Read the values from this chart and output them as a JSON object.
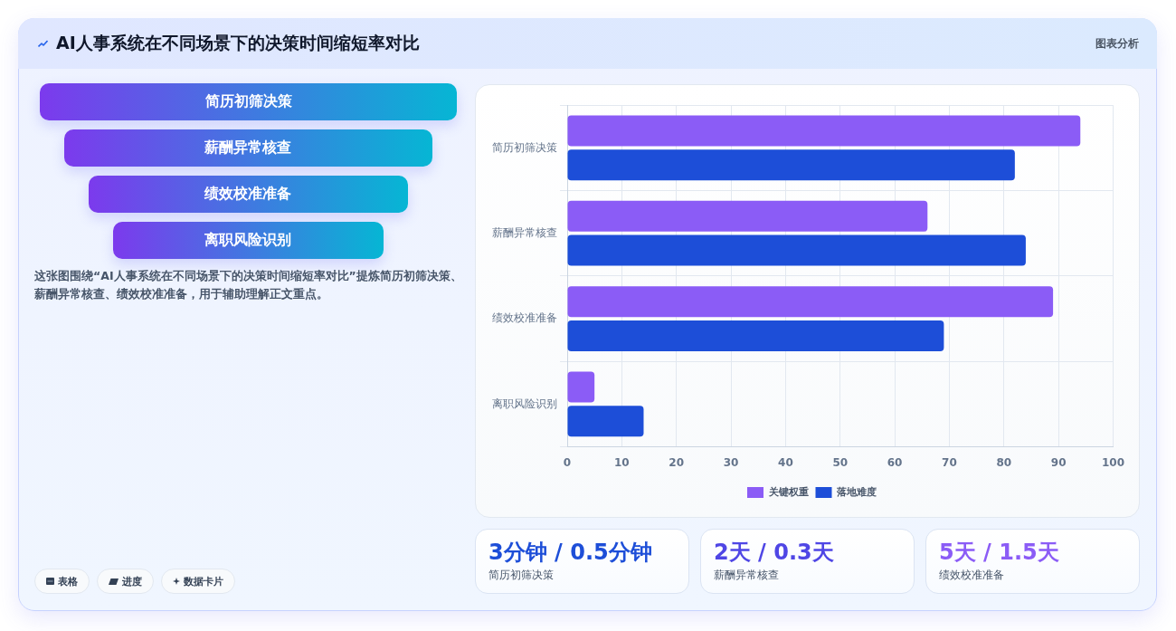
{
  "chart_data": [
    {
      "type": "other",
      "title": "AI人事系统在不同场景下的决策时间缩短率对比",
      "categories": [
        "简历初筛决策",
        "薪酬异常核查",
        "绩效校准准备",
        "离职风险识别"
      ],
      "annotations": [
        "图表分析",
        "这张图围绕“AI人事系统在不同场景下的决策时间缩短率对比”提炼简历初筛决策、薪酬异常核查、绩效校准准备，用于辅助理解正文重点。",
        "表格",
        "进度",
        "数据卡片"
      ]
    },
    {
      "type": "bar",
      "orientation": "horizontal",
      "categories": [
        "简历初筛决策",
        "薪酬异常核查",
        "绩效校准准备",
        "离职风险识别"
      ],
      "series": [
        {
          "name": "关键权重",
          "color": "#8b5cf6",
          "values": [
            94,
            66,
            89,
            5
          ]
        },
        {
          "name": "落地难度",
          "color": "#1d4ed8",
          "values": [
            82,
            84,
            69,
            14
          ]
        }
      ],
      "xlim": [
        0,
        100
      ],
      "xticks": [
        0,
        10,
        20,
        30,
        40,
        50,
        60,
        70,
        80,
        90,
        100
      ],
      "grid": true,
      "legend": "bottom"
    },
    {
      "type": "other",
      "categories": [
        "简历初筛决策",
        "薪酬异常核查",
        "绩效校准准备"
      ],
      "value_labels": [
        "3分钟 / 0.5分钟",
        "2天 / 0.3天",
        "5天 / 1.5天"
      ]
    }
  ]
}
